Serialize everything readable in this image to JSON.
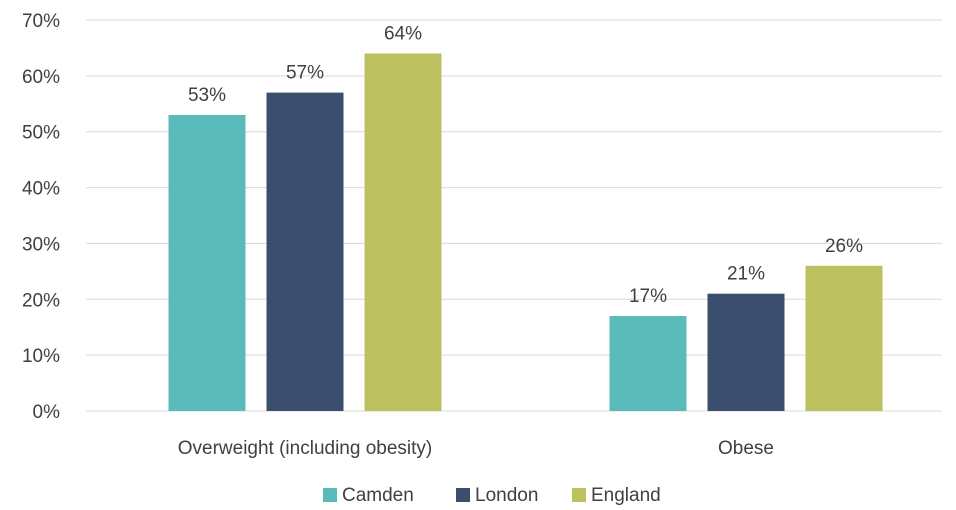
{
  "chart_data": {
    "type": "bar",
    "categories": [
      "Overweight (including obesity)",
      "Obese"
    ],
    "series": [
      {
        "name": "Camden",
        "values": [
          53,
          17
        ],
        "labels": [
          "53%",
          "17%"
        ],
        "color": "#5bbbbb"
      },
      {
        "name": "London",
        "values": [
          57,
          21
        ],
        "labels": [
          "57%",
          "21%"
        ],
        "color": "#3b4e6e"
      },
      {
        "name": "England",
        "values": [
          64,
          26
        ],
        "labels": [
          "64%",
          "26%"
        ],
        "color": "#bcc05e"
      }
    ],
    "ylim": [
      0,
      70
    ],
    "yticks": [
      0,
      10,
      20,
      30,
      40,
      50,
      60,
      70
    ],
    "ytick_labels": [
      "0%",
      "10%",
      "20%",
      "30%",
      "40%",
      "50%",
      "60%",
      "70%"
    ],
    "grid": true,
    "legend_position": "bottom"
  }
}
